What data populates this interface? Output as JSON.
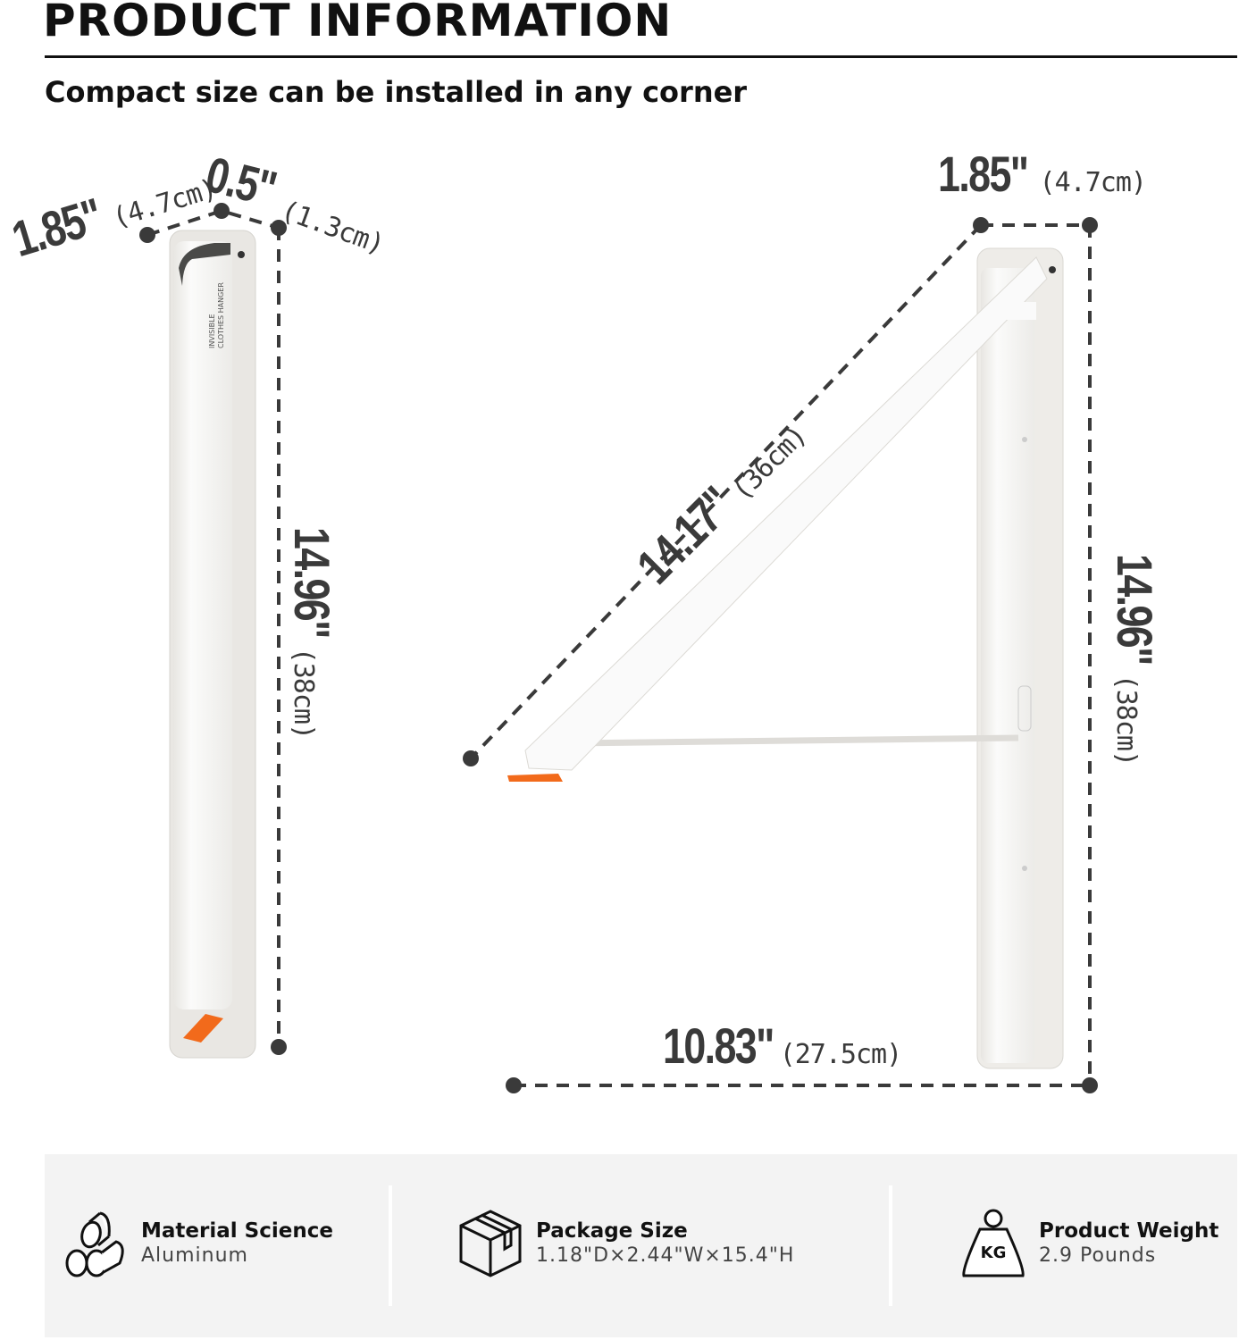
{
  "header": {
    "title": "PRODUCT INFORMATION",
    "subtitle": "Compact size can be installed in any corner"
  },
  "folded_view": {
    "width_in": "1.85\"",
    "width_cm": "(4.7cm)",
    "depth_in": "0.5\"",
    "depth_cm": "(1.3cm)",
    "height_in": "14.96\"",
    "height_cm": "(38cm)",
    "product_label": [
      "INVISIBLE",
      "CLOTHES HANGER"
    ]
  },
  "unfolded_view": {
    "width_in": "1.85\"",
    "width_cm": "(4.7cm)",
    "arm_in": "14.17\"",
    "arm_cm": "(36cm)",
    "height_in": "14.96\"",
    "height_cm": "(38cm)",
    "extension_in": "10.83\"",
    "extension_cm": "(27.5cm)"
  },
  "specs": [
    {
      "icon": "material-rods-icon",
      "label": "Material Science",
      "value": "Aluminum"
    },
    {
      "icon": "package-box-icon",
      "label": "Package Size",
      "value": "1.18\"D×2.44\"W×15.4\"H"
    },
    {
      "icon": "kg-weight-icon",
      "label": "Product Weight",
      "value": "2.9 Pounds",
      "icon_text": "KG"
    }
  ],
  "colors": {
    "accent": "#f26a1b",
    "dimension": "#3a3a3a",
    "panel": "#f3f3f3"
  }
}
